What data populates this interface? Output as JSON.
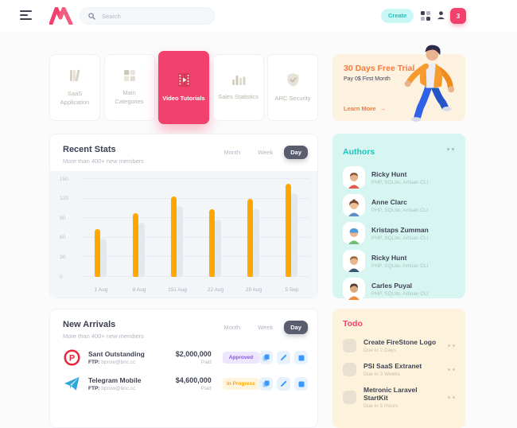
{
  "navbar": {
    "search_placeholder": "Search",
    "create_label": "Create",
    "notification_count": "3"
  },
  "category_cards": [
    {
      "label": "SaaS Application",
      "icon": "books-icon",
      "active": false
    },
    {
      "label": "Main Categories",
      "icon": "grid-squares-icon",
      "active": false
    },
    {
      "label": "Video Tutorials",
      "icon": "film-play-icon",
      "active": true
    },
    {
      "label": "Sales Statistics",
      "icon": "bar-chart-icon",
      "active": false
    },
    {
      "label": "ARC Security",
      "icon": "shield-check-icon",
      "active": false
    }
  ],
  "trial_card": {
    "title": "30 Days Free Trial",
    "subtitle": "Pay 0$ First Month",
    "link_label": "Learn More",
    "link_arrow": "→"
  },
  "recent_stats": {
    "title": "Recent Stats",
    "subtitle": "More than 400+ new members",
    "toggles": [
      "Month",
      "Week",
      "Day"
    ],
    "active_toggle": "Day"
  },
  "chart_data": {
    "type": "bar",
    "title": "Recent Stats",
    "categories": [
      "1 Aug",
      "8 Aug",
      "151 Aug",
      "22 Aug",
      "29 Aug",
      "5 Sep"
    ],
    "series": [
      {
        "name": "current",
        "color": "#ffa800",
        "values": [
          73,
          97,
          123,
          104,
          119,
          143
        ]
      },
      {
        "name": "previous",
        "color": "#e4e7ee",
        "values": [
          58,
          83,
          108,
          88,
          104,
          128
        ]
      }
    ],
    "yticks": [
      0,
      30,
      60,
      90,
      120,
      150
    ],
    "ylim": [
      0,
      150
    ],
    "xlabel": "",
    "ylabel": "",
    "grid": "dotted-horizontal",
    "legend_position": "none"
  },
  "authors": {
    "title": "Authors",
    "items": [
      {
        "name": "Ricky Hunt",
        "skills": "PHP, SQLite, Artisan CLI"
      },
      {
        "name": "Anne Clarc",
        "skills": "PHP, SQLite, Artisan CLI"
      },
      {
        "name": "Kristaps Zumman",
        "skills": "PHP, SQLite, Artisan CLI"
      },
      {
        "name": "Ricky Hunt",
        "skills": "PHP, SQLite, Artisan CLI"
      },
      {
        "name": "Carles Puyal",
        "skills": "PHP, SQLite, Artisan CLI"
      }
    ]
  },
  "new_arrivals": {
    "title": "New Arrivals",
    "subtitle": "More than 400+ new members",
    "toggles": [
      "Month",
      "Week",
      "Day"
    ],
    "active_toggle": "Day",
    "rows": [
      {
        "app": "Sant Outstanding",
        "icon": "p-logo-icon",
        "ftp_label": "FTP:",
        "ftp_value": "bprow@bnc.cc",
        "amount": "$2,000,000",
        "amount_sub": "Paid",
        "status": "Approved"
      },
      {
        "app": "Telegram Mobile",
        "icon": "telegram-icon",
        "ftp_label": "FTP:",
        "ftp_value": "bprow@bnc.cc",
        "amount": "$4,600,000",
        "amount_sub": "Paid",
        "status": "In Progress"
      }
    ],
    "row_actions": [
      "copy",
      "edit",
      "delete"
    ]
  },
  "todo": {
    "title": "Todo",
    "items": [
      {
        "title": "Create FireStone Logo",
        "due": "Due in 2 Days"
      },
      {
        "title": "PSI SaaS Extranet",
        "due": "Due in 3 Weeks"
      },
      {
        "title": "Metronic Laravel StartKit",
        "due": "Due in 5 Hours"
      }
    ]
  },
  "colors": {
    "accent_red": "#f1416c",
    "accent_teal": "#1bc5bd",
    "teal_light": "#c9f7f5",
    "orange": "#ffa800",
    "orange_light": "#fff4de",
    "purple": "#8950fc",
    "purple_light": "#eee5ff",
    "blue": "#3699ff",
    "blue_light": "#e7f2fd",
    "text_dark": "#3f4254",
    "text_gray": "#b5b5c3",
    "authors_bg": "#d7f6f1",
    "todo_bg": "#fdf3dc",
    "trial_bg": "#fdf1e0",
    "trial_accent": "#f47b3d",
    "chart_bg": "#f3f6f9"
  }
}
